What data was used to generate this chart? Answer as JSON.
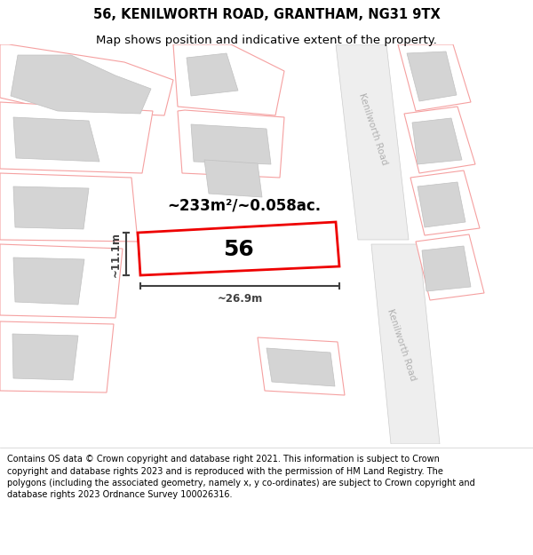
{
  "title_line1": "56, KENILWORTH ROAD, GRANTHAM, NG31 9TX",
  "title_line2": "Map shows position and indicative extent of the property.",
  "footer": "Contains OS data © Crown copyright and database right 2021. This information is subject to Crown copyright and database rights 2023 and is reproduced with the permission of HM Land Registry. The polygons (including the associated geometry, namely x, y co-ordinates) are subject to Crown copyright and database rights 2023 Ordnance Survey 100026316.",
  "map_bg": "#ffffff",
  "road_fill": "#eeeeee",
  "road_stroke": "#cccccc",
  "plot_stroke_main": "#ee0000",
  "surrounding_stroke": "#f5a0a0",
  "surrounding_fill": "#ffffff",
  "building_fill": "#d4d4d4",
  "building_stroke": "#c0c0c0",
  "dim_color": "#404040",
  "area_text": "~233m²/~0.058ac.",
  "plot_label": "56",
  "dim_width": "~26.9m",
  "dim_height": "~11.1m",
  "road_label": "Kenilworth Road",
  "title_fontsize": 10.5,
  "subtitle_fontsize": 9.5,
  "footer_fontsize": 7.0,
  "area_fontsize": 12,
  "label_fontsize": 18,
  "dim_fontsize": 8.5,
  "road_label_fontsize": 7.5,
  "road_label_color": "#b0b0b0"
}
